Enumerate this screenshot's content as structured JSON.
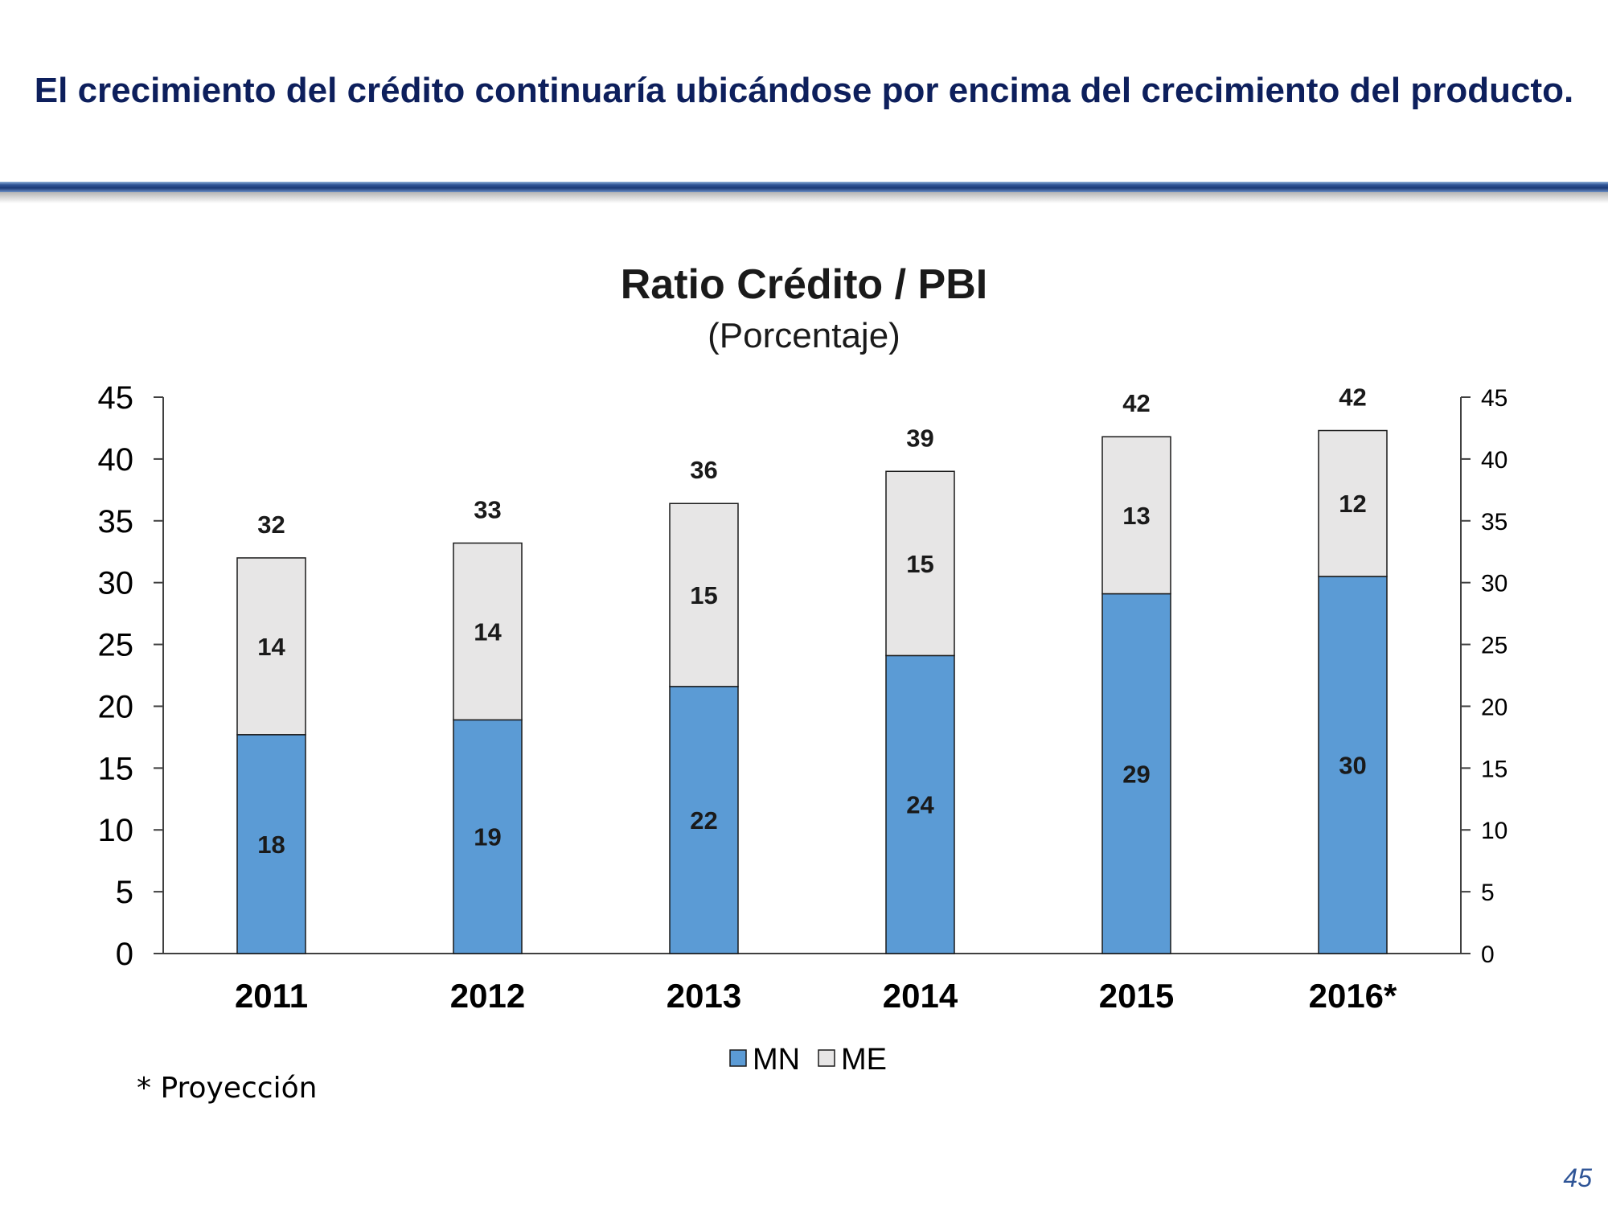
{
  "slide": {
    "title": "El crecimiento del crédito continuaría ubicándose por encima del crecimiento del producto.",
    "footnote": "* Proyección",
    "page_number": "45"
  },
  "colors": {
    "title": "#0d1f5c",
    "mn": "#5b9bd5",
    "me": "#e7e6e6",
    "rule": "#2f5597",
    "page_number": "#2f5597"
  },
  "chart_data": {
    "type": "bar",
    "stacked": true,
    "title": "Ratio Crédito / PBI",
    "subtitle": "(Porcentaje)",
    "categories": [
      "2011",
      "2012",
      "2013",
      "2014",
      "2015",
      "2016*"
    ],
    "series": [
      {
        "name": "MN",
        "color": "#5b9bd5",
        "values": [
          17.7,
          18.9,
          21.6,
          24.1,
          29.1,
          30.5
        ],
        "labels": [
          "18",
          "19",
          "22",
          "24",
          "29",
          "30"
        ]
      },
      {
        "name": "ME",
        "color": "#e7e6e6",
        "values": [
          14.3,
          14.3,
          14.8,
          14.9,
          12.7,
          11.8
        ],
        "labels": [
          "14",
          "14",
          "15",
          "15",
          "13",
          "12"
        ]
      }
    ],
    "totals": [
      "32",
      "33",
      "36",
      "39",
      "42",
      "42"
    ],
    "y_ticks": [
      "0",
      "5",
      "10",
      "15",
      "20",
      "25",
      "30",
      "35",
      "40",
      "45"
    ],
    "ylim": [
      0,
      45
    ],
    "secondary_axis": true,
    "grid": false,
    "legend": "bottom-center",
    "xlabel": "",
    "ylabel": ""
  }
}
